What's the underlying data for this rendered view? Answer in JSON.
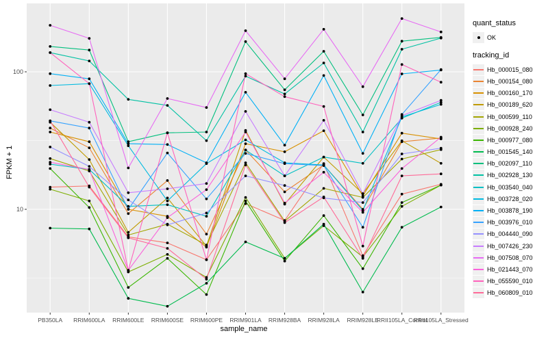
{
  "figure": {
    "x_axis_title": "sample_name",
    "y_axis_title": "FPKM + 1",
    "legend": {
      "quant_status_title": "quant_status",
      "quant_status_items": [
        {
          "label": "OK"
        }
      ],
      "tracking_title": "tracking_id"
    }
  },
  "chart_data": {
    "type": "line",
    "title": "",
    "xlabel": "sample_name",
    "ylabel": "FPKM + 1",
    "y_scale": "log10",
    "ylim": [
      1.8,
      311
    ],
    "grid": "on",
    "legend_position": "right",
    "panel_bg": "#EBEBEB",
    "gridline_color": "#FFFFFF",
    "point_color": "#000000",
    "tick_label_color": "#4D4D4D",
    "y_ticks": [
      {
        "label": "100",
        "value": 100
      },
      {
        "label": "10",
        "value": 10
      }
    ],
    "y_major_gridlines": [
      100,
      10
    ],
    "y_minor_gridlines": [
      316.2,
      31.62,
      3.162
    ],
    "x": [
      "PB350LA",
      "RRIM600LA",
      "RRIM600LE",
      "RRIM600SE",
      "RRIM600PE",
      "RRIM901LA",
      "RRIM928BA",
      "RRIM928LA",
      "RRIM928LE",
      "RRII105LA_Control",
      "RRII105LA_Stressed"
    ],
    "series": [
      {
        "name": "Hb_000015_080",
        "color": "#F8766D",
        "values": [
          14.5,
          14.8,
          6.3,
          5.7,
          4.3,
          11,
          8.3,
          21.5,
          4.6,
          12.9,
          15.2
        ]
      },
      {
        "name": "Hb_000154_080",
        "color": "#EA8331",
        "values": [
          39,
          28,
          9.3,
          16.2,
          6.6,
          27,
          13.4,
          21,
          10,
          31,
          33
        ]
      },
      {
        "name": "Hb_000160_170",
        "color": "#D89000",
        "values": [
          36.5,
          31,
          10,
          8.9,
          5.3,
          30,
          26.2,
          37.3,
          12.5,
          35.8,
          32.5
        ]
      },
      {
        "name": "Hb_000189_620",
        "color": "#C09B00",
        "values": [
          43,
          23,
          6.8,
          12.1,
          5.4,
          37.5,
          10.9,
          24,
          13,
          31.5,
          21.6
        ]
      },
      {
        "name": "Hb_000599_110",
        "color": "#A3A500",
        "values": [
          23.4,
          19,
          6.5,
          7.8,
          5.5,
          21.8,
          8.2,
          14.2,
          12.2,
          23.2,
          27.2
        ]
      },
      {
        "name": "Hb_000928_240",
        "color": "#7CAE00",
        "values": [
          14,
          11.5,
          3.5,
          4.7,
          3.2,
          12.2,
          4.4,
          7.6,
          4.5,
          10.5,
          15
        ]
      },
      {
        "name": "Hb_000977_080",
        "color": "#39B600",
        "values": [
          19.8,
          10.3,
          2.7,
          4.4,
          2.4,
          11.5,
          4.2,
          9,
          3.7,
          11.2,
          15
        ]
      },
      {
        "name": "Hb_001545_140",
        "color": "#00BB4E",
        "values": [
          7.3,
          7.2,
          2.25,
          1.97,
          2.9,
          5.8,
          4.4,
          7.8,
          2.5,
          7.4,
          10.4
        ]
      },
      {
        "name": "Hb_002097_110",
        "color": "#00BF7D",
        "values": [
          153,
          144,
          31,
          36,
          36.5,
          166,
          74,
          141,
          48.6,
          167,
          178
        ]
      },
      {
        "name": "Hb_002928_130",
        "color": "#00C1A3",
        "values": [
          138,
          120,
          63,
          57,
          31.6,
          93,
          69,
          116,
          36.5,
          146,
          176
        ]
      },
      {
        "name": "Hb_003540_040",
        "color": "#00BFC4",
        "values": [
          21.3,
          19.5,
          10.5,
          10.8,
          8.9,
          27,
          17.5,
          24,
          21.6,
          46,
          60
        ]
      },
      {
        "name": "Hb_003728_020",
        "color": "#00BAE0",
        "values": [
          79.5,
          82,
          29,
          11.5,
          21.5,
          32,
          21.8,
          21,
          9.8,
          47,
          58
        ]
      },
      {
        "name": "Hb_003878_190",
        "color": "#00B0F6",
        "values": [
          97,
          89,
          30,
          29.6,
          21.8,
          71,
          29.3,
          94,
          25.5,
          96.6,
          103
        ]
      },
      {
        "name": "Hb_003976_010",
        "color": "#35A2FF",
        "values": [
          44,
          39,
          10,
          25.7,
          11.9,
          25.5,
          21.5,
          20.8,
          7.4,
          49,
          104
        ]
      },
      {
        "name": "Hb_004440_090",
        "color": "#9590FF",
        "values": [
          28.4,
          20.5,
          11.7,
          7.7,
          9.4,
          17.5,
          14.9,
          12.1,
          11.2,
          25.3,
          27.8
        ]
      },
      {
        "name": "Hb_007426_230",
        "color": "#C77CFF",
        "values": [
          53,
          43,
          13.2,
          14.1,
          15.4,
          51.5,
          17.5,
          44.4,
          13,
          48,
          62
        ]
      },
      {
        "name": "Hb_007508_070",
        "color": "#E76BF3",
        "values": [
          218,
          175,
          20,
          64,
          55,
          199,
          89,
          204,
          78,
          244,
          195
        ]
      },
      {
        "name": "Hb_021443_070",
        "color": "#FA62DB",
        "values": [
          22,
          19.5,
          3.6,
          8.7,
          13.9,
          36.5,
          11.1,
          18.6,
          9.5,
          19.8,
          33.5
        ]
      },
      {
        "name": "Hb_055590_010",
        "color": "#FF62BC",
        "values": [
          138,
          82,
          3.6,
          36,
          4.3,
          97,
          66,
          56,
          5.4,
          113,
          84
        ]
      },
      {
        "name": "Hb_060809_010",
        "color": "#FF6A98",
        "values": [
          44,
          14.5,
          6.2,
          5.2,
          3.1,
          21,
          8,
          12.3,
          4.4,
          17.5,
          18.1
        ]
      }
    ]
  }
}
